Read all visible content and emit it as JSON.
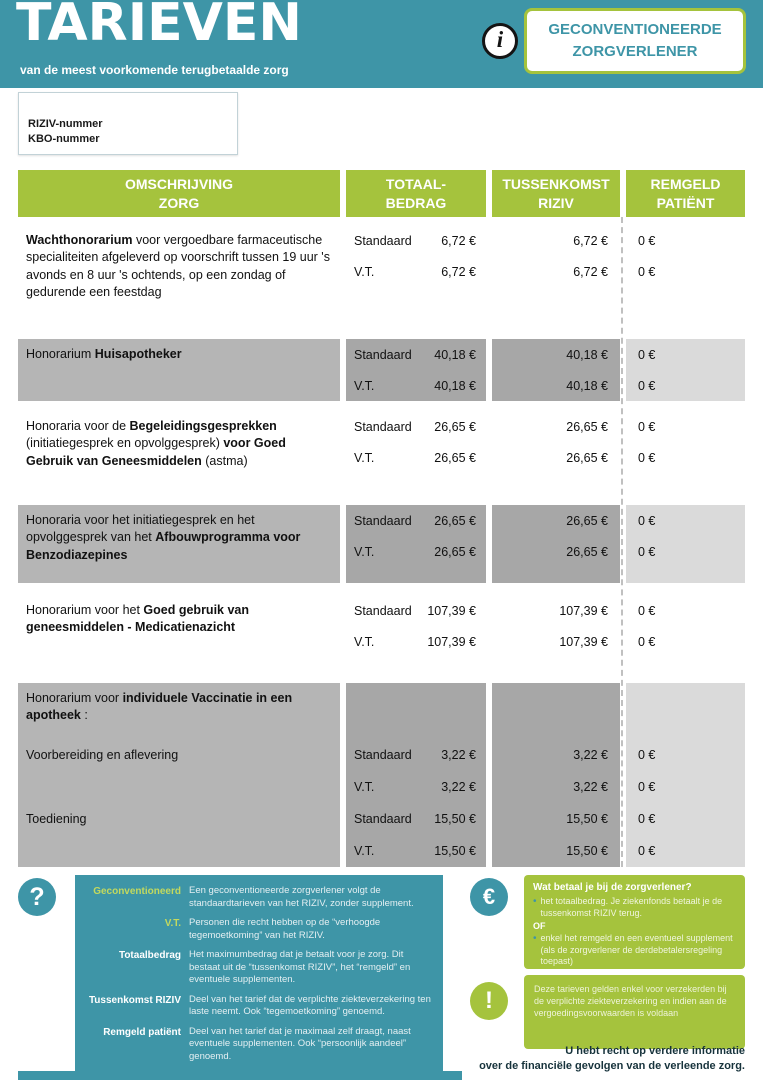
{
  "colors": {
    "teal": "#3e95a7",
    "green": "#a5c33d",
    "green_light": "#c3d95e",
    "gray_desc": "#b5b5b5",
    "gray_amount": "#a7a7a7",
    "gray_remgeld": "#dadada"
  },
  "header": {
    "title": "TARIEVEN",
    "subtitle": "van de meest voorkomende terugbetaalde zorg",
    "badge": "GECONVENTIONEERDE\nZORGVERLENER"
  },
  "icons": {
    "info": "i",
    "question": "?",
    "euro": "€",
    "exclamation": "!"
  },
  "id_box": {
    "riziv_label": "RIZIV-nummer",
    "kbo_label": "KBO-nummer"
  },
  "table": {
    "headers": {
      "col1": "OMSCHRIJVING\nZORG",
      "col2": "TOTAAL-\nBEDRAG",
      "col3": "TUSSENKOMST\nRIZIV",
      "col4": "REMGELD\nPATIËNT"
    },
    "rows": [
      {
        "desc": [
          {
            "t": "Wachthonorarium",
            "b": true
          },
          {
            "t": " voor vergoedbare farmaceutische specialiteiten afgeleverd op voorschrift tussen 19 uur 's avonds en 8 uur 's ochtends, op een zondag of gedurende een feestdag",
            "b": false
          }
        ],
        "lines": [
          {
            "label": "Standaard",
            "totaal": "6,72 €",
            "riziv": "6,72 €",
            "remgeld": "0 €"
          },
          {
            "label": "V.T.",
            "totaal": "6,72 €",
            "riziv": "6,72 €",
            "remgeld": "0 €"
          }
        ]
      },
      {
        "desc": [
          {
            "t": "Honorarium ",
            "b": false
          },
          {
            "t": "Huisapotheker",
            "b": true
          }
        ],
        "lines": [
          {
            "label": "Standaard",
            "totaal": "40,18 €",
            "riziv": "40,18 €",
            "remgeld": "0 €"
          },
          {
            "label": "V.T.",
            "totaal": "40,18 €",
            "riziv": "40,18 €",
            "remgeld": "0 €"
          }
        ]
      },
      {
        "desc": [
          {
            "t": "Honoraria voor de ",
            "b": false
          },
          {
            "t": "Begeleidingsgesprekken",
            "b": true
          },
          {
            "t": " (initiatiegesprek en opvolggesprek) ",
            "b": false
          },
          {
            "t": "voor Goed Gebruik van Geneesmiddelen",
            "b": true
          },
          {
            "t": " (astma)",
            "b": false
          }
        ],
        "lines": [
          {
            "label": "Standaard",
            "totaal": "26,65 €",
            "riziv": "26,65 €",
            "remgeld": "0 €"
          },
          {
            "label": "V.T.",
            "totaal": "26,65 €",
            "riziv": "26,65 €",
            "remgeld": "0 €"
          }
        ]
      },
      {
        "desc": [
          {
            "t": "Honoraria voor het initiatiegesprek en het opvolggesprek van het ",
            "b": false
          },
          {
            "t": "Afbouwprogramma voor Benzodiazepines",
            "b": true
          }
        ],
        "lines": [
          {
            "label": "Standaard",
            "totaal": "26,65 €",
            "riziv": "26,65 €",
            "remgeld": "0 €"
          },
          {
            "label": "V.T.",
            "totaal": "26,65 €",
            "riziv": "26,65 €",
            "remgeld": "0 €"
          }
        ]
      },
      {
        "desc": [
          {
            "t": "Honorarium voor het ",
            "b": false
          },
          {
            "t": "Goed gebruik van geneesmiddelen - Medicatienazicht",
            "b": true
          }
        ],
        "lines": [
          {
            "label": "Standaard",
            "totaal": "107,39 €",
            "riziv": "107,39 €",
            "remgeld": "0 €"
          },
          {
            "label": "V.T.",
            "totaal": "107,39 €",
            "riziv": "107,39 €",
            "remgeld": "0 €"
          }
        ]
      },
      {
        "heading": [
          {
            "t": "Honorarium voor ",
            "b": false
          },
          {
            "t": "individuele Vaccinatie in een apotheek",
            "b": true
          },
          {
            "t": " :",
            "b": false
          }
        ],
        "sub1": "Voorbereiding en aflevering",
        "sub2": "Toediening",
        "lines": [
          {
            "label": "Standaard",
            "totaal": "3,22 €",
            "riziv": "3,22 €",
            "remgeld": "0 €"
          },
          {
            "label": "V.T.",
            "totaal": "3,22 €",
            "riziv": "3,22 €",
            "remgeld": "0 €"
          },
          {
            "label": "Standaard",
            "totaal": "15,50 €",
            "riziv": "15,50 €",
            "remgeld": "0 €"
          },
          {
            "label": "V.T.",
            "totaal": "15,50 €",
            "riziv": "15,50 €",
            "remgeld": "0 €"
          }
        ]
      }
    ]
  },
  "legend": {
    "items": [
      {
        "term": "Geconventioneerd",
        "def": "Een geconventioneerde zorgverlener volgt de standaardtarieven van het RIZIV, zonder supplement."
      },
      {
        "term": "V.T.",
        "def": "Personen die recht hebben op de “verhoogde tegemoetkoming” van het RIZIV."
      },
      {
        "term": "Totaalbedrag",
        "def": "Het maximumbedrag dat je betaalt voor je zorg. Dit bestaat uit de “tussenkomst RIZIV”, het “remgeld” en eventuele supplementen."
      },
      {
        "term": "Tussenkomst RIZIV",
        "def": "Deel van het tarief dat de verplichte ziekteverzekering ten laste neemt. Ook “tegemoetkoming” genoemd."
      },
      {
        "term": "Remgeld patiënt",
        "def": "Deel van het tarief dat je maximaal zelf draagt, naast eventuele supplementen. Ook “persoonlijk aandeel” genoemd."
      }
    ]
  },
  "pay_box": {
    "title": "Wat betaal je bij de zorgverlener?",
    "bullet1": "het totaalbedrag. Je ziekenfonds betaalt je de tussenkomst RIZIV terug.",
    "or": "OF",
    "bullet2": "enkel het remgeld en een eventueel supplement (als de zorgverlener de derdebetalersregeling toepast)"
  },
  "notice_box": {
    "text": "Deze tarieven gelden enkel voor verzekerden bij de verplichte ziekteverzekering en indien aan de vergoedingsvoorwaarden is voldaan"
  },
  "footer_note": "U hebt recht op verdere informatie\nover de financiële gevolgen van de verleende zorg."
}
